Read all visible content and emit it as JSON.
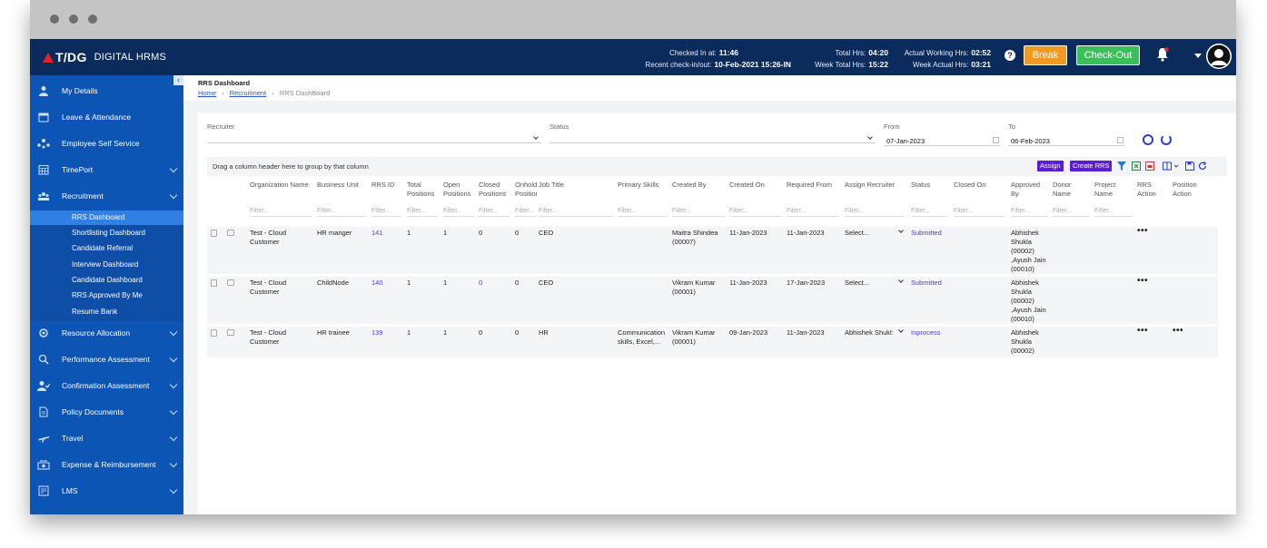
{
  "app": {
    "brand": "T/DG",
    "name": "DIGITAL HRMS"
  },
  "topbar": {
    "checked_in_label": "Checked In at:",
    "checked_in_value": "11:46",
    "recent_label": "Recent check-in/out:",
    "recent_value": "10-Feb-2021 15:26-IN",
    "total_hrs_label": "Total Hrs:",
    "total_hrs_value": "04:20",
    "week_total_label": "Week Total Hrs:",
    "week_total_value": "15:22",
    "actual_label": "Actual Working Hrs:",
    "actual_value": "02:52",
    "week_actual_label": "Week Actual Hrs:",
    "week_actual_value": "03:21",
    "help": "?",
    "break_label": "Break",
    "checkout_label": "Check-Out"
  },
  "sidebar": {
    "collapse": "‹",
    "items": [
      {
        "label": "My Details",
        "icon": "user-icon"
      },
      {
        "label": "Leave & Attendance",
        "icon": "calendar-icon"
      },
      {
        "label": "Employee Self Service",
        "icon": "people-network-icon"
      },
      {
        "label": "TimePort",
        "icon": "calendar-grid-icon"
      },
      {
        "label": "Recruitment",
        "icon": "group-icon"
      }
    ],
    "sub_items": [
      "RRS Dashboard",
      "Shortlisting Dashboard",
      "Candidate Referral",
      "Interview Dashboard",
      "Candidate Dashboard",
      "RRS Approved By Me",
      "Resume Bank"
    ],
    "items2": [
      {
        "label": "Resource Allocation",
        "icon": "resource-icon"
      },
      {
        "label": "Performance Assessment",
        "icon": "magnifier-chart-icon"
      },
      {
        "label": "Confirmation Assessment",
        "icon": "user-check-icon"
      },
      {
        "label": "Policy Documents",
        "icon": "document-icon"
      },
      {
        "label": "Travel",
        "icon": "plane-icon"
      },
      {
        "label": "Expense & Reimbursement",
        "icon": "money-icon"
      },
      {
        "label": "LMS",
        "icon": "lms-icon"
      }
    ]
  },
  "page": {
    "title": "RRS Dashboard",
    "crumb_home": "Home",
    "crumb_recruitment": "Recruitment",
    "crumb_current": "RRS DashBoard",
    "sep": "›"
  },
  "filters": {
    "recruiter_label": "Recruiter",
    "status_label": "Status",
    "from_label": "From",
    "from_value": "07-Jan-2023",
    "to_label": "To",
    "to_value": "06-Feb-2023"
  },
  "toolbar": {
    "drag_text": "Drag a column header here to group by that column",
    "assign_label": "Assign",
    "create_label": "Create RRS"
  },
  "columns": [
    "Organization Name",
    "Business Unit",
    "RRS ID",
    "Total Positions",
    "Open Positions",
    "Closed Positions",
    "Onhold Position",
    "Job Title",
    "Primary Skills",
    "Created By",
    "Created On",
    "Required From",
    "Assign Recruiter",
    "Status",
    "Closed On",
    "Approved By",
    "Donor Name",
    "Project Name",
    "RRS Action",
    "Position Action"
  ],
  "filter_placeholder": "Filter...",
  "rows": [
    {
      "org": "Test - Cloud Customer",
      "bu": "HR manger",
      "id": "141",
      "total": "1",
      "open": "1",
      "closed": "0",
      "onhold": "0",
      "job": "CEO",
      "skills": "",
      "created_by": "Maitra Shindea (00007)",
      "created_on": "11-Jan-2023",
      "required": "11-Jan-2023",
      "recruiter": "Select...",
      "status": "Submitted",
      "closed_on": "",
      "approved": "Abhishek Shukla (00002) ,Ayush Jain (00010)",
      "rrs_action": "•••",
      "pos_action": ""
    },
    {
      "org": "Test - Cloud Customer",
      "bu": "ChildNode",
      "id": "140",
      "total": "1",
      "open": "1",
      "closed": "0",
      "onhold": "0",
      "job": "CEO",
      "skills": "",
      "created_by": "Vikram Kumar (00001)",
      "created_on": "11-Jan-2023",
      "required": "17-Jan-2023",
      "recruiter": "Select...",
      "status": "Submitted",
      "closed_on": "",
      "approved": "Abhishek Shukla (00002) ,Ayush Jain (00010)",
      "rrs_action": "•••",
      "pos_action": ""
    },
    {
      "org": "Test - Cloud Customer",
      "bu": "HR trainee",
      "id": "139",
      "total": "1",
      "open": "1",
      "closed": "0",
      "onhold": "0",
      "job": "HR",
      "skills": "Communication skills, Excel,...",
      "created_by": "Vikram Kumar (00001)",
      "created_on": "09-Jan-2023",
      "required": "11-Jan-2023",
      "recruiter": "Abhishek Shukl:",
      "status": "Inprocess",
      "closed_on": "",
      "approved": "Abhishek Shukla (00002)",
      "rrs_action": "•••",
      "pos_action": "•••"
    }
  ],
  "colors": {
    "topbar": "#0b2b5c",
    "sidebar": "#0d55b4",
    "sidebar_active": "#2f7fe4",
    "accent_purple": "#5b1ed6",
    "break": "#f39a1e",
    "checkout": "#3bbf5b"
  }
}
